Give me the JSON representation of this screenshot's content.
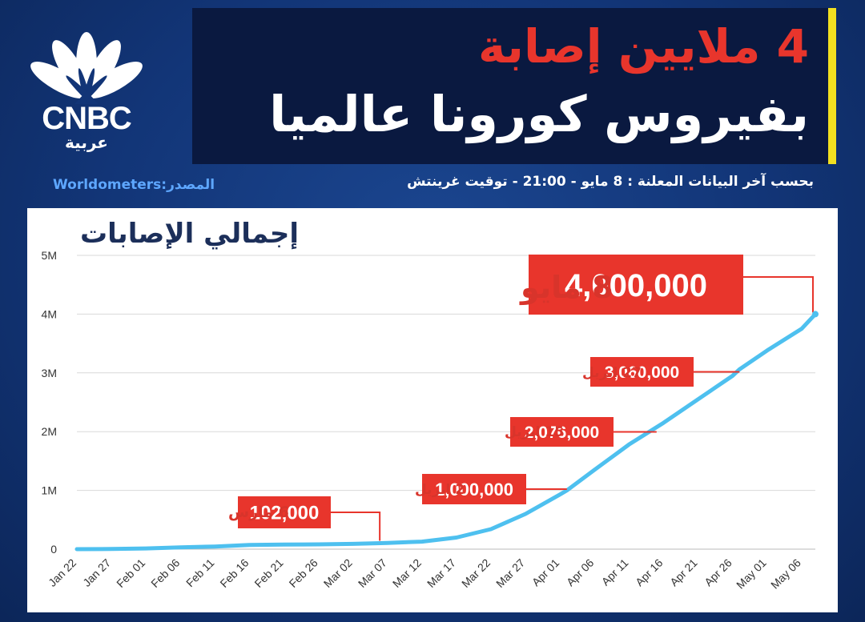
{
  "brand": {
    "logo_text": "CNBC",
    "logo_arabic": "عربية"
  },
  "headline": {
    "line1": "4 ملايين إصابة",
    "line2": "بفيروس كورونا عالميا"
  },
  "source_label": "Worldometers:المصدر",
  "note": "بحسب آخر البيانات المعلنة : 8 مايو - 21:00 - توقيت غرينتش",
  "colors": {
    "accent_red": "#e8352c",
    "line_blue": "#4ec0ef",
    "highlight_yellow": "#f3e020",
    "navy": "#0a1940"
  },
  "chart_data": {
    "type": "line",
    "title": "إجمالي الإصابات",
    "x_ticks": [
      "Jan 22",
      "Jan 27",
      "Feb 01",
      "Feb 06",
      "Feb 11",
      "Feb 16",
      "Feb 21",
      "Feb 26",
      "Mar 02",
      "Mar 07",
      "Mar 12",
      "Mar 17",
      "Mar 22",
      "Mar 27",
      "Apr 01",
      "Apr 06",
      "Apr 11",
      "Apr 16",
      "Apr 21",
      "Apr 26",
      "May 01",
      "May 06"
    ],
    "y_ticks": [
      "0",
      "1M",
      "2M",
      "3M",
      "4M",
      "5M"
    ],
    "ylim": [
      0,
      5000000
    ],
    "grid": true,
    "x_start": "Jan 22",
    "x_end": "May 08",
    "series": [
      {
        "values": [
          [
            "Jan 22",
            580
          ],
          [
            "Jan 27",
            2900
          ],
          [
            "Feb 01",
            12000
          ],
          [
            "Feb 06",
            31000
          ],
          [
            "Feb 11",
            45000
          ],
          [
            "Feb 16",
            71000
          ],
          [
            "Feb 21",
            77000
          ],
          [
            "Feb 26",
            82000
          ],
          [
            "Mar 02",
            90000
          ],
          [
            "Mar 06",
            102000
          ],
          [
            "Mar 07",
            106000
          ],
          [
            "Mar 12",
            128000
          ],
          [
            "Mar 17",
            198000
          ],
          [
            "Mar 22",
            340000
          ],
          [
            "Mar 27",
            600000
          ],
          [
            "Apr 01",
            930000
          ],
          [
            "Apr 02",
            1000000
          ],
          [
            "Apr 06",
            1350000
          ],
          [
            "Apr 11",
            1780000
          ],
          [
            "Apr 15",
            2076000
          ],
          [
            "Apr 16",
            2150000
          ],
          [
            "Apr 21",
            2550000
          ],
          [
            "Apr 26",
            2950000
          ],
          [
            "Apr 27",
            3060000
          ],
          [
            "May 01",
            3380000
          ],
          [
            "May 06",
            3750000
          ],
          [
            "May 08",
            4000000
          ]
        ]
      }
    ],
    "annotations": [
      {
        "date_label": "6 مارس",
        "value_label": "102,000",
        "x": "Mar 06",
        "y": 102000
      },
      {
        "date_label": "2 ابريل",
        "value_label": "1,000,000",
        "x": "Apr 02",
        "y": 1000000
      },
      {
        "date_label": "15 ابريل",
        "value_label": "2,076,000",
        "x": "Apr 15",
        "y": 2076000
      },
      {
        "date_label": "27 ابريل",
        "value_label": "3,060,000",
        "x": "Apr 27",
        "y": 3060000
      },
      {
        "date_label": "8 مايو",
        "value_label": "4,000,000",
        "x": "May 08",
        "y": 4000000
      }
    ]
  }
}
